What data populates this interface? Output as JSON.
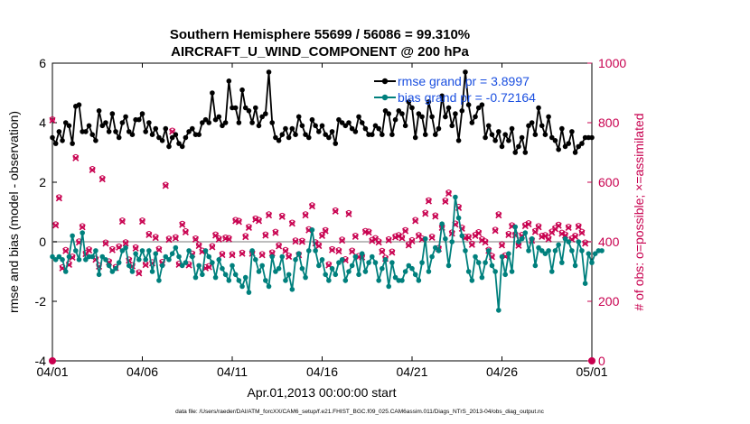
{
  "chart_data": {
    "type": "line",
    "title_line1": "Southern Hemisphere 55699 / 56086 = 99.310%",
    "title_line2": "AIRCRAFT_U_WIND_COMPONENT @ 200 hPa",
    "ylabel_left": "rmse and bias (model - observation)",
    "ylabel_right": "# of obs: o=possible; ×=assimilated",
    "xlabel": "Apr.01,2013 00:00:00 start",
    "footnote": "data file: /Users/raeder/DAI/ATM_forcXX/CAM6_setup/f.e21.FHIST_BGC.f09_025.CAM6assim.011/Diags_NTrS_2013-04/obs_diag_output.nc",
    "x_ticks": [
      "04/01",
      "04/06",
      "04/11",
      "04/16",
      "04/21",
      "04/26",
      "05/01"
    ],
    "xlim_days": [
      0,
      30
    ],
    "ylim_left": [
      -4,
      6
    ],
    "y_ticks_left": [
      "-4",
      "-2",
      "0",
      "2",
      "4",
      "6"
    ],
    "ylim_right": [
      0,
      1000
    ],
    "y_ticks_right": [
      "0",
      "200",
      "400",
      "600",
      "800",
      "1000"
    ],
    "series": [
      {
        "name": "rmse",
        "legend": "rmse grand pr = 3.8997",
        "color": "#000000",
        "values": [
          3.5,
          3.3,
          3.7,
          3.4,
          4.0,
          3.9,
          3.3,
          4.55,
          4.6,
          3.7,
          3.7,
          3.9,
          3.6,
          3.4,
          4.4,
          3.9,
          4.0,
          3.7,
          4.3,
          3.7,
          3.5,
          4.0,
          4.2,
          3.7,
          3.6,
          4.1,
          4.1,
          4.3,
          3.7,
          4.0,
          3.6,
          3.8,
          3.5,
          3.4,
          3.8,
          3.2,
          3.5,
          3.6,
          3.3,
          3.2,
          3.5,
          3.7,
          3.8,
          3.6,
          3.6,
          4.0,
          4.1,
          4.0,
          5.0,
          4.1,
          4.2,
          3.9,
          4.0,
          5.4,
          4.5,
          4.5,
          4.0,
          5.1,
          4.5,
          4.4,
          4.0,
          4.5,
          3.9,
          4.2,
          4.3,
          5.7,
          4.0,
          3.5,
          3.4,
          3.6,
          3.8,
          3.5,
          3.8,
          3.6,
          4.2,
          3.9,
          3.6,
          3.5,
          4.1,
          3.9,
          3.7,
          3.9,
          3.6,
          3.5,
          3.7,
          3.3,
          4.1,
          4.0,
          3.9,
          4.0,
          3.8,
          3.7,
          4.2,
          4.0,
          3.8,
          3.6,
          3.6,
          3.9,
          3.8,
          3.6,
          4.4,
          4.3,
          3.6,
          4.1,
          4.4,
          4.3,
          3.9,
          4.7,
          4.5,
          3.5,
          4.3,
          4.2,
          3.6,
          4.7,
          4.2,
          3.6,
          3.8,
          4.9,
          4.2,
          4.5,
          3.9,
          4.3,
          3.4,
          4.4,
          5.7,
          4.6,
          4.0,
          4.2,
          4.5,
          4.6,
          3.5,
          3.9,
          3.6,
          3.4,
          3.7,
          3.2,
          3.6,
          3.4,
          3.8,
          3.0,
          3.2,
          3.5,
          3.0,
          3.9,
          4.0,
          3.6,
          4.5,
          3.9,
          3.6,
          4.2,
          3.5,
          3.4,
          3.1,
          3.8,
          3.2,
          3.3,
          3.7,
          3.0,
          3.2,
          3.3,
          3.5,
          3.5,
          3.5
        ]
      },
      {
        "name": "bias",
        "legend": "bias grand pr = -0.72164",
        "color": "#00807d",
        "values": [
          -0.5,
          -0.6,
          -0.5,
          -0.6,
          -1.0,
          -0.5,
          0.2,
          -0.3,
          -0.6,
          0.3,
          -0.6,
          -0.5,
          -0.5,
          -0.3,
          -1.1,
          -0.5,
          -0.6,
          -0.8,
          -1.0,
          -0.9,
          -0.7,
          -0.3,
          -0.2,
          -0.8,
          -1.0,
          -0.4,
          -0.6,
          -0.3,
          -0.6,
          -0.3,
          -1.0,
          -0.4,
          -1.3,
          -0.8,
          -0.5,
          -0.6,
          -0.4,
          -0.2,
          -0.5,
          -0.8,
          -0.7,
          -0.3,
          -0.5,
          -1.2,
          -0.8,
          -1.1,
          -0.3,
          -0.5,
          -0.7,
          -1.2,
          -0.6,
          -0.9,
          -1.1,
          -1.3,
          -0.8,
          -1.1,
          -1.3,
          -1.5,
          -1.2,
          -1.7,
          -0.3,
          -0.6,
          -1.0,
          -0.8,
          -1.3,
          -1.5,
          -0.5,
          -1.0,
          -0.9,
          -0.5,
          -1.3,
          -1.1,
          -1.6,
          -0.6,
          -0.4,
          -0.9,
          -1.2,
          -0.3,
          0.4,
          -0.3,
          -0.8,
          -0.6,
          -1.1,
          -1.3,
          -0.9,
          -1.1,
          -0.7,
          -0.6,
          -1.3,
          -1.0,
          -0.8,
          -0.5,
          -1.1,
          -0.4,
          -1.0,
          -0.7,
          -0.5,
          -0.7,
          -1.3,
          -0.9,
          -0.6,
          -1.5,
          -0.7,
          -1.2,
          -1.3,
          -1.3,
          -1.0,
          -0.8,
          -0.9,
          -1.1,
          -1.3,
          -0.7,
          0.1,
          -1.0,
          -0.5,
          -0.2,
          -0.3,
          0.6,
          0.1,
          -0.8,
          0.0,
          1.5,
          0.8,
          0.2,
          -0.3,
          -1.0,
          -1.3,
          -0.5,
          -0.7,
          -1.2,
          -0.7,
          -0.3,
          -0.8,
          -1.0,
          -2.3,
          -0.5,
          -1.1,
          -0.4,
          -1.0,
          0.5,
          0.0,
          0.1,
          0.3,
          -0.3,
          0.1,
          -0.8,
          -0.2,
          -0.3,
          -0.4,
          -0.3,
          -1.0,
          -0.3,
          -0.1,
          -0.7,
          0.1,
          0.0,
          -0.3,
          -0.8,
          0.0,
          -0.3,
          -1.4,
          -0.4,
          -0.7,
          -0.4,
          -0.3,
          -0.3
        ]
      },
      {
        "name": "obs_possible",
        "marker": "o",
        "color": "#c8004f",
        "axis": "right",
        "values": [
          812,
          459,
          550,
          315,
          373,
          327,
          351,
          685,
          402,
          453,
          363,
          375,
          645,
          344,
          321,
          614,
          398,
          335,
          376,
          316,
          385,
          472,
          399,
          341,
          322,
          382,
          298,
          472,
          326,
          427,
          332,
          417,
          377,
          333,
          592,
          411,
          774,
          416,
          327,
          461,
          436,
          325,
          361,
          412,
          390,
          371,
          315,
          319,
          386,
          425,
          412,
          360,
          415,
          413,
          359,
          474,
          471,
          364,
          420,
          451,
          364,
          479,
          474,
          359,
          425,
          493,
          365,
          434,
          389,
          488,
          373,
          354,
          465,
          405,
          359,
          404,
          493,
          443,
          523,
          399,
          390,
          424,
          440,
          325,
          376,
          506,
          372,
          408,
          342,
          497,
          371,
          421,
          353,
          352,
          437,
          435,
          407,
          413,
          402,
          370,
          347,
          409,
          368,
          419,
          423,
          416,
          440,
          392,
          406,
          474,
          423,
          412,
          498,
          540,
          418,
          489,
          380,
          451,
          539,
          566,
          432,
          462,
          518,
          448,
          417,
          418,
          394,
          424,
          433,
          409,
          402,
          374,
          353,
          441,
          493,
          392,
          355,
          427,
          456,
          426,
          391,
          424,
          457,
          463,
          408,
          437,
          453,
          421,
          423,
          413,
          435,
          447,
          458,
          431,
          425,
          451,
          412,
          421,
          454,
          434,
          398
        ]
      },
      {
        "name": "obs_assimilated",
        "marker": "x",
        "color": "#c8004f",
        "axis": "right",
        "values": [
          808,
          455,
          546,
          311,
          369,
          323,
          347,
          681,
          398,
          449,
          359,
          371,
          641,
          340,
          317,
          610,
          394,
          331,
          372,
          312,
          381,
          468,
          395,
          337,
          318,
          378,
          294,
          468,
          322,
          423,
          328,
          413,
          373,
          329,
          588,
          407,
          770,
          412,
          323,
          457,
          432,
          321,
          357,
          408,
          386,
          367,
          311,
          315,
          382,
          421,
          408,
          356,
          411,
          409,
          355,
          470,
          467,
          360,
          416,
          447,
          360,
          475,
          470,
          355,
          421,
          489,
          361,
          430,
          385,
          484,
          369,
          350,
          461,
          401,
          355,
          400,
          489,
          439,
          519,
          395,
          386,
          420,
          436,
          321,
          372,
          502,
          368,
          404,
          338,
          493,
          367,
          417,
          349,
          348,
          433,
          431,
          403,
          409,
          398,
          366,
          343,
          405,
          364,
          415,
          419,
          412,
          436,
          388,
          402,
          470,
          419,
          408,
          494,
          536,
          414,
          485,
          376,
          447,
          535,
          562,
          428,
          458,
          514,
          444,
          413,
          414,
          390,
          420,
          429,
          405,
          398,
          370,
          349,
          437,
          489,
          388,
          351,
          423,
          452,
          422,
          387,
          420,
          453,
          459,
          404,
          433,
          449,
          417,
          419,
          409,
          431,
          443,
          454,
          427,
          421,
          447,
          408,
          417,
          450,
          430,
          394
        ]
      }
    ]
  }
}
